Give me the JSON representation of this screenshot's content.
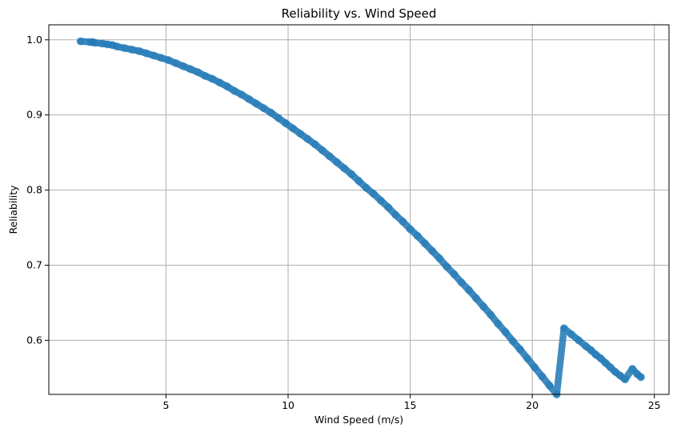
{
  "chart_data": {
    "type": "scatter",
    "title": "Reliability vs. Wind Speed",
    "xlabel": "Wind Speed (m/s)",
    "ylabel": "Reliability",
    "xlim": [
      0.2,
      25.6
    ],
    "ylim": [
      0.528,
      1.02
    ],
    "xticks": [
      5,
      10,
      15,
      20,
      25
    ],
    "yticks": [
      0.6,
      0.7,
      0.8,
      0.9,
      1.0
    ],
    "xtick_labels": [
      "5",
      "10",
      "15",
      "20",
      "25"
    ],
    "ytick_labels": [
      "0.6",
      "0.7",
      "0.8",
      "0.9",
      "1.0"
    ],
    "grid": true,
    "marker_color": "#1f77b4",
    "marker_alpha": 0.5,
    "series": [
      {
        "name": "Reliability",
        "x": [
          1.5,
          1.9,
          2.0,
          2.1,
          2.4,
          2.6,
          2.8,
          3.0,
          3.3,
          3.6,
          3.9,
          4.2,
          4.5,
          4.8,
          5.1,
          5.4,
          5.7,
          6.0,
          6.3,
          6.6,
          6.9,
          7.2,
          7.5,
          7.8,
          8.1,
          8.4,
          8.7,
          9.0,
          9.3,
          9.6,
          9.9,
          10.2,
          10.5,
          10.8,
          11.1,
          11.4,
          11.7,
          12.0,
          12.3,
          12.6,
          12.9,
          13.2,
          13.5,
          13.8,
          14.1,
          14.4,
          14.7,
          15.0,
          15.3,
          15.6,
          15.9,
          16.2,
          16.5,
          16.8,
          17.1,
          17.4,
          17.7,
          18.0,
          18.3,
          18.6,
          18.9,
          19.2,
          19.5,
          19.8,
          20.1,
          20.4,
          20.7,
          21.0,
          21.3,
          21.6,
          21.9,
          22.2,
          22.4,
          22.6,
          22.8,
          23.0,
          23.2,
          23.4,
          23.6,
          23.8,
          24.1,
          24.3,
          24.45
        ],
        "y": [
          0.998,
          0.997,
          0.997,
          0.996,
          0.995,
          0.994,
          0.993,
          0.991,
          0.989,
          0.987,
          0.985,
          0.982,
          0.979,
          0.976,
          0.973,
          0.969,
          0.965,
          0.961,
          0.957,
          0.952,
          0.948,
          0.943,
          0.938,
          0.932,
          0.927,
          0.921,
          0.915,
          0.909,
          0.903,
          0.896,
          0.889,
          0.882,
          0.875,
          0.868,
          0.861,
          0.853,
          0.845,
          0.837,
          0.829,
          0.821,
          0.812,
          0.803,
          0.795,
          0.786,
          0.777,
          0.767,
          0.758,
          0.748,
          0.739,
          0.729,
          0.719,
          0.709,
          0.698,
          0.688,
          0.677,
          0.667,
          0.656,
          0.645,
          0.634,
          0.622,
          0.611,
          0.599,
          0.588,
          0.576,
          0.564,
          0.552,
          0.54,
          0.528,
          0.616,
          0.608,
          0.6,
          0.592,
          0.587,
          0.581,
          0.576,
          0.57,
          0.564,
          0.558,
          0.553,
          0.548,
          0.562,
          0.555,
          0.551
        ]
      }
    ]
  }
}
